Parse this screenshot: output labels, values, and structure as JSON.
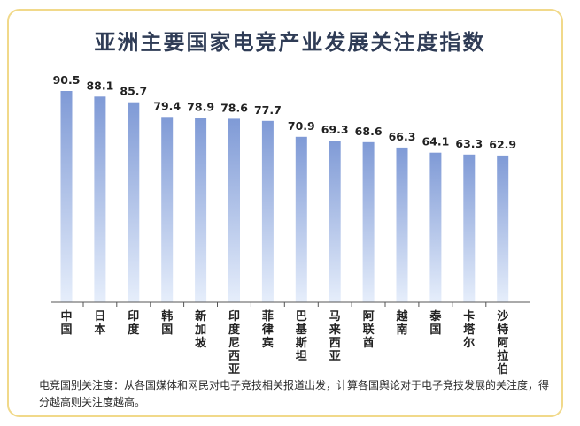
{
  "chart_data": {
    "type": "bar",
    "title": "亚洲主要国家电竞产业发展关注度指数",
    "categories": [
      "中国",
      "日本",
      "印度",
      "韩国",
      "新加坡",
      "印度尼西亚",
      "菲律宾",
      "巴基斯坦",
      "马来西亚",
      "阿联酋",
      "越南",
      "泰国",
      "卡塔尔",
      "沙特阿拉伯"
    ],
    "values": [
      90.5,
      88.1,
      85.7,
      79.4,
      78.9,
      78.6,
      77.7,
      70.9,
      69.3,
      68.6,
      66.3,
      64.1,
      63.3,
      62.9
    ],
    "value_labels": [
      "90.5",
      "88.1",
      "85.7",
      "79.4",
      "78.9",
      "78.6",
      "77.7",
      "70.9",
      "69.3",
      "68.6",
      "66.3",
      "64.1",
      "63.3",
      "62.9"
    ],
    "xlabel": "",
    "ylabel": "",
    "ylim": [
      0,
      100
    ],
    "grid": false,
    "bar_color_top": "#7f9ad6",
    "bar_color_bottom": "#e6eefb"
  },
  "footnote": "电竞国别关注度：从各国媒体和网民对电子竞技相关报道出发，计算各国舆论对于电子竞技发展的关注度，得分越高则关注度越高。",
  "colors": {
    "border": "#f1d98a",
    "title": "#2f3c56",
    "baseline": "#555555"
  }
}
